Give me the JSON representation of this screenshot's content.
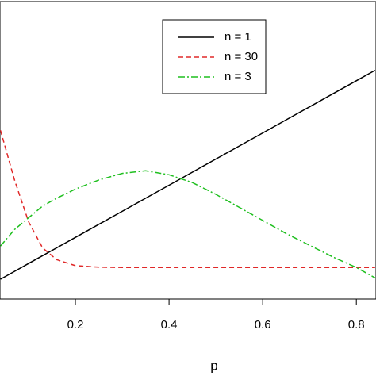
{
  "chart_data": {
    "type": "line",
    "x": [
      0.04,
      0.07,
      0.1,
      0.13,
      0.16,
      0.2,
      0.25,
      0.3,
      0.35,
      0.4,
      0.45,
      0.5,
      0.55,
      0.6,
      0.65,
      0.7,
      0.75,
      0.8,
      0.84
    ],
    "series": [
      {
        "name": "n = 1",
        "color": "#000000",
        "dash": "none",
        "values": [
          0.04,
          0.07,
          0.1,
          0.13,
          0.16,
          0.2,
          0.25,
          0.3,
          0.35,
          0.4,
          0.45,
          0.5,
          0.55,
          0.6,
          0.65,
          0.7,
          0.75,
          0.8,
          0.84
        ]
      },
      {
        "name": "n = 30",
        "color": "#e02828",
        "dash": "6,4",
        "values": [
          0.61,
          0.42,
          0.26,
          0.16,
          0.115,
          0.092,
          0.086,
          0.085,
          0.085,
          0.085,
          0.085,
          0.085,
          0.085,
          0.085,
          0.085,
          0.085,
          0.085,
          0.085,
          0.085
        ]
      },
      {
        "name": "n = 3",
        "color": "#1fbf1f",
        "dash": "8,3,2,3",
        "values": [
          0.167,
          0.23,
          0.275,
          0.32,
          0.35,
          0.385,
          0.42,
          0.445,
          0.455,
          0.44,
          0.41,
          0.365,
          0.315,
          0.265,
          0.215,
          0.17,
          0.125,
          0.085,
          0.045
        ]
      }
    ],
    "xlabel": "p",
    "xlim": [
      0.039,
      0.842
    ],
    "xticks": [
      0.2,
      0.4,
      0.6,
      0.8
    ],
    "ylim": [
      -0.036,
      1.103
    ],
    "legend": "top"
  }
}
